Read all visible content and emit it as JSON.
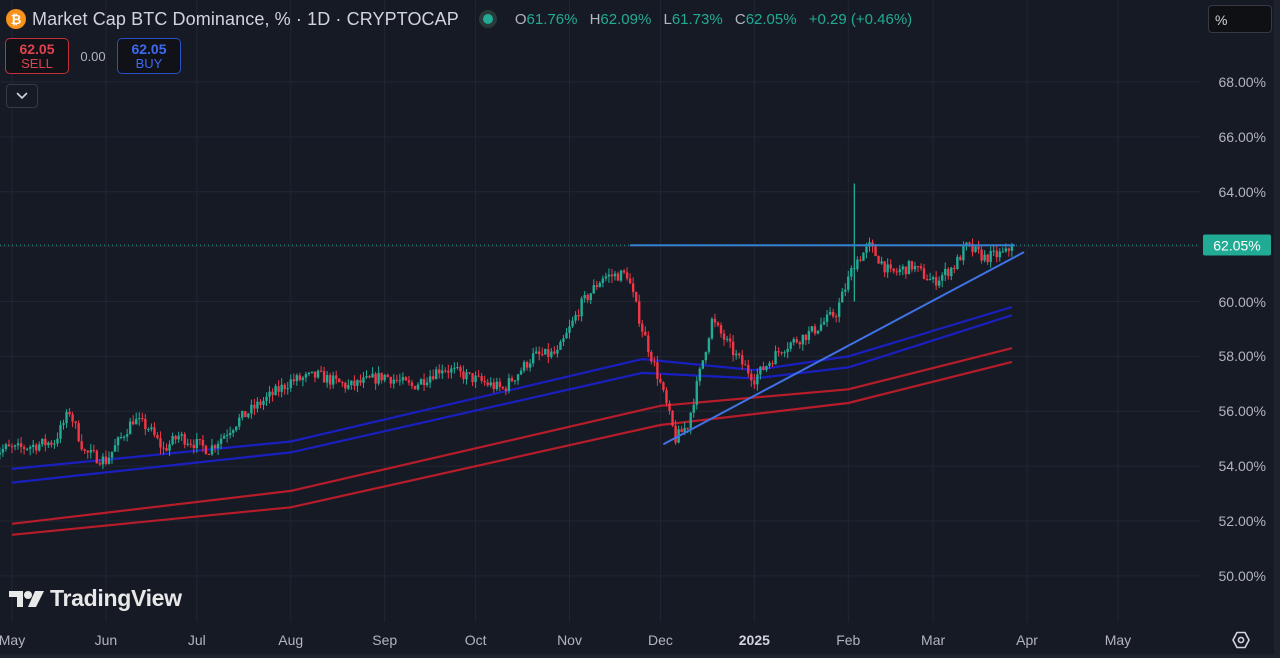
{
  "header": {
    "coin_icon_glyph": "₿",
    "title": "Market Cap BTC Dominance, % · 1D · CRYPTOCAP",
    "ohlc": {
      "open_label": "O",
      "open": "61.76%",
      "high_label": "H",
      "high": "62.09%",
      "low_label": "L",
      "low": "61.73%",
      "close_label": "C",
      "close": "62.05%",
      "change": "+0.29 (+0.46%)"
    }
  },
  "trade": {
    "sell_price": "62.05",
    "sell_label": "SELL",
    "spread": "0.00",
    "buy_price": "62.05",
    "buy_label": "BUY"
  },
  "price_scale": {
    "unit": "%",
    "current_price_tag": "62.05%"
  },
  "branding": {
    "logo_text": "TradingView"
  },
  "colors": {
    "background": "#161a25",
    "up": "#22ab94",
    "down": "#f23645",
    "ma_blue": "#1a1fbf",
    "ma_red": "#b71c2a",
    "trendline": "#3f73e6",
    "price_tag": "#22ab94"
  },
  "chart_data": {
    "type": "candlestick",
    "title": "Market Cap BTC Dominance, % · 1D · CRYPTOCAP",
    "ylabel": "%",
    "ylim": [
      49,
      69.5
    ],
    "y_ticks": [
      "68.00%",
      "66.00%",
      "64.00%",
      "62.00%",
      "60.00%",
      "58.00%",
      "56.00%",
      "54.00%",
      "52.00%",
      "50.00%"
    ],
    "x_ticks": [
      "May",
      "Jun",
      "Jul",
      "Aug",
      "Sep",
      "Oct",
      "Nov",
      "Dec",
      "2025",
      "Feb",
      "Mar",
      "Apr",
      "May"
    ],
    "grid": true,
    "last_price": 62.05,
    "approx_close_path": [
      {
        "date": "2024-05-01",
        "close": 54.6
      },
      {
        "date": "2024-05-15",
        "close": 54.9
      },
      {
        "date": "2024-05-20",
        "close": 56.0
      },
      {
        "date": "2024-05-25",
        "close": 54.5
      },
      {
        "date": "2024-06-01",
        "close": 54.2
      },
      {
        "date": "2024-06-10",
        "close": 55.7
      },
      {
        "date": "2024-06-15",
        "close": 55.4
      },
      {
        "date": "2024-06-20",
        "close": 54.6
      },
      {
        "date": "2024-06-25",
        "close": 55.1
      },
      {
        "date": "2024-07-05",
        "close": 54.6
      },
      {
        "date": "2024-07-15",
        "close": 55.7
      },
      {
        "date": "2024-07-22",
        "close": 56.3
      },
      {
        "date": "2024-08-01",
        "close": 57.1
      },
      {
        "date": "2024-08-10",
        "close": 57.3
      },
      {
        "date": "2024-08-20",
        "close": 56.9
      },
      {
        "date": "2024-09-01",
        "close": 57.3
      },
      {
        "date": "2024-09-10",
        "close": 56.9
      },
      {
        "date": "2024-09-20",
        "close": 57.6
      },
      {
        "date": "2024-09-30",
        "close": 57.2
      },
      {
        "date": "2024-10-10",
        "close": 56.8
      },
      {
        "date": "2024-10-20",
        "close": 58.0
      },
      {
        "date": "2024-10-28",
        "close": 58.1
      },
      {
        "date": "2024-11-05",
        "close": 59.9
      },
      {
        "date": "2024-11-12",
        "close": 60.9
      },
      {
        "date": "2024-11-20",
        "close": 61.0
      },
      {
        "date": "2024-11-25",
        "close": 59.0
      },
      {
        "date": "2024-12-01",
        "close": 57.0
      },
      {
        "date": "2024-12-06",
        "close": 55.0
      },
      {
        "date": "2024-12-10",
        "close": 55.5
      },
      {
        "date": "2024-12-18",
        "close": 59.3
      },
      {
        "date": "2024-12-26",
        "close": 58.0
      },
      {
        "date": "2025-01-01",
        "close": 57.2
      },
      {
        "date": "2025-01-10",
        "close": 58.3
      },
      {
        "date": "2025-01-20",
        "close": 58.9
      },
      {
        "date": "2025-01-28",
        "close": 59.6
      },
      {
        "date": "2025-02-03",
        "close": 61.4
      },
      {
        "date": "2025-02-08",
        "close": 62.0
      },
      {
        "date": "2025-02-15",
        "close": 61.0
      },
      {
        "date": "2025-02-22",
        "close": 61.3
      },
      {
        "date": "2025-03-01",
        "close": 60.7
      },
      {
        "date": "2025-03-08",
        "close": 61.3
      },
      {
        "date": "2025-03-12",
        "close": 62.0
      },
      {
        "date": "2025-03-18",
        "close": 61.6
      },
      {
        "date": "2025-03-25",
        "close": 61.76
      },
      {
        "date": "2025-03-27",
        "close": 62.05
      }
    ],
    "notable": {
      "spike_high_feb_2025": 64.3,
      "low_dec_2024": 54.8
    },
    "overlays": [
      {
        "name": "MA blue upper",
        "color": "#1a1fbf",
        "points": [
          [
            "2024-05-01",
            53.9
          ],
          [
            "2024-08-01",
            54.9
          ],
          [
            "2024-11-25",
            57.9
          ],
          [
            "2025-01-01",
            57.5
          ],
          [
            "2025-02-01",
            58.0
          ],
          [
            "2025-03-27",
            59.8
          ]
        ]
      },
      {
        "name": "MA blue lower",
        "color": "#1a1fbf",
        "points": [
          [
            "2024-05-01",
            53.4
          ],
          [
            "2024-08-01",
            54.5
          ],
          [
            "2024-11-25",
            57.4
          ],
          [
            "2025-01-01",
            57.2
          ],
          [
            "2025-02-01",
            57.6
          ],
          [
            "2025-03-27",
            59.5
          ]
        ]
      },
      {
        "name": "MA red upper",
        "color": "#b71c2a",
        "points": [
          [
            "2024-05-01",
            51.9
          ],
          [
            "2024-08-01",
            53.1
          ],
          [
            "2024-12-01",
            56.2
          ],
          [
            "2025-02-01",
            56.8
          ],
          [
            "2025-03-27",
            58.3
          ]
        ]
      },
      {
        "name": "MA red lower",
        "color": "#b71c2a",
        "points": [
          [
            "2024-05-01",
            51.5
          ],
          [
            "2024-08-01",
            52.5
          ],
          [
            "2024-12-01",
            55.5
          ],
          [
            "2025-02-01",
            56.3
          ],
          [
            "2025-03-27",
            57.8
          ]
        ]
      },
      {
        "name": "Resistance trendline",
        "color": "#3f73e6",
        "points": [
          [
            "2024-11-21",
            62.05
          ],
          [
            "2025-03-28",
            62.05
          ]
        ]
      },
      {
        "name": "Support trendline",
        "color": "#3f73e6",
        "points": [
          [
            "2024-12-02",
            54.8
          ],
          [
            "2025-03-31",
            61.8
          ]
        ]
      }
    ]
  }
}
